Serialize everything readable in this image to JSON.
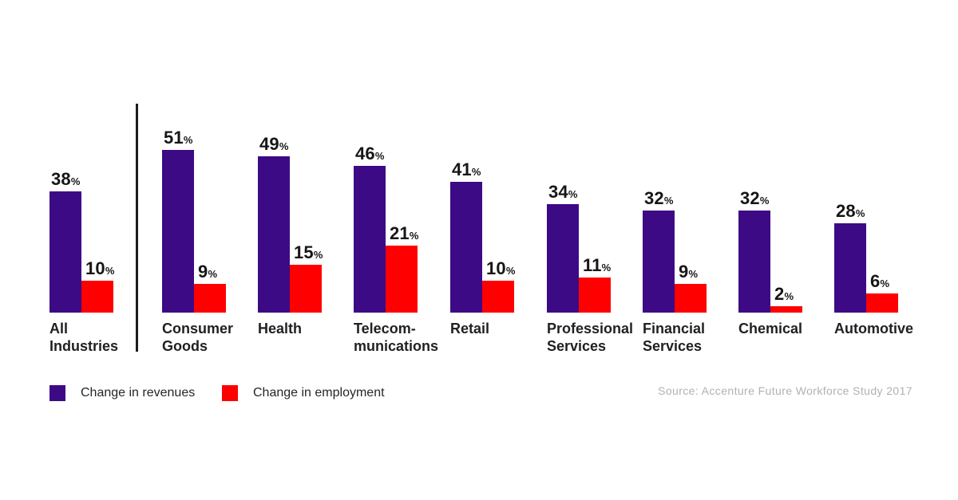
{
  "chart_data": {
    "type": "bar",
    "categories": [
      "All Industries",
      "Consumer Goods",
      "Health",
      "Telecom-munications",
      "Retail",
      "Professional Services",
      "Financial Services",
      "Chemical",
      "Automotive"
    ],
    "category_label_lines": [
      [
        "All",
        "Industries"
      ],
      [
        "Consumer",
        "Goods"
      ],
      [
        "Health"
      ],
      [
        "Telecom-",
        "munications"
      ],
      [
        "Retail"
      ],
      [
        "Professional",
        "Services"
      ],
      [
        "Financial",
        "Services"
      ],
      [
        "Chemical"
      ],
      [
        "Automotive"
      ]
    ],
    "series": [
      {
        "name": "Change in revenues",
        "color": "#3D0A85",
        "values": [
          38,
          51,
          49,
          46,
          41,
          34,
          32,
          32,
          28
        ]
      },
      {
        "name": "Change in employment",
        "color": "#FF0000",
        "values": [
          10,
          9,
          15,
          21,
          10,
          11,
          9,
          2,
          6
        ]
      }
    ],
    "unit": "%",
    "ylim": [
      0,
      55
    ],
    "grid": false,
    "legend_position": "bottom-left",
    "value_labels": "above-bars",
    "divider_after_category": "All Industries"
  },
  "source": "Source: Accenture Future Workforce Study 2017",
  "colors": {
    "revenues": "#3D0A85",
    "employment": "#FF0000",
    "text": "#212121",
    "divider": "#1d1d1d",
    "source_text": "#b1b1b6",
    "background": "#ffffff"
  }
}
